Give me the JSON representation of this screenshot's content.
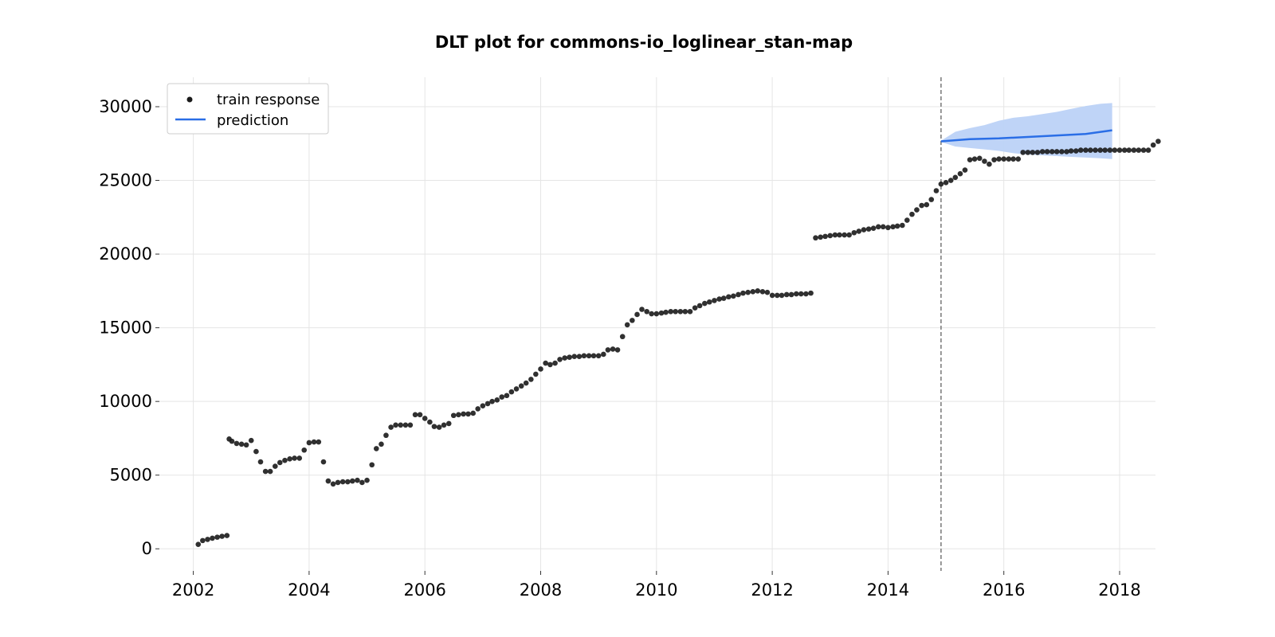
{
  "chart_data": {
    "type": "scatter",
    "title": "DLT plot for commons-io_loglinear_stan-map",
    "xlabel": "",
    "ylabel": "",
    "xlim": [
      "2001-06-01",
      "2018-08-15"
    ],
    "ylim": [
      -1500,
      32000
    ],
    "x_ticks": [
      "2002",
      "2004",
      "2006",
      "2008",
      "2010",
      "2012",
      "2014",
      "2016",
      "2018"
    ],
    "y_ticks": [
      "0",
      "5000",
      "10000",
      "15000",
      "20000",
      "25000",
      "30000"
    ],
    "grid": true,
    "legend": {
      "position": "top-left",
      "entries": [
        "train response",
        "prediction"
      ]
    },
    "train_cutoff": "2014-12-01",
    "colors": {
      "train": "#1a1a1a",
      "prediction": "#2a6ee6",
      "band": "#bcd2f7",
      "cutoff": "#777777",
      "grid": "#e5e5e5"
    },
    "series": [
      {
        "name": "train response",
        "type": "scatter",
        "points": [
          [
            "2002-02-01",
            300
          ],
          [
            "2002-03-01",
            560
          ],
          [
            "2002-04-01",
            640
          ],
          [
            "2002-05-01",
            720
          ],
          [
            "2002-06-01",
            790
          ],
          [
            "2002-07-01",
            850
          ],
          [
            "2002-08-01",
            900
          ],
          [
            "2002-08-15",
            7450
          ],
          [
            "2002-09-01",
            7300
          ],
          [
            "2002-10-01",
            7150
          ],
          [
            "2002-11-01",
            7100
          ],
          [
            "2002-12-01",
            7050
          ],
          [
            "2003-01-01",
            7350
          ],
          [
            "2003-02-01",
            6600
          ],
          [
            "2003-03-01",
            5900
          ],
          [
            "2003-04-01",
            5250
          ],
          [
            "2003-05-01",
            5250
          ],
          [
            "2003-06-01",
            5600
          ],
          [
            "2003-07-01",
            5850
          ],
          [
            "2003-08-01",
            6000
          ],
          [
            "2003-09-01",
            6100
          ],
          [
            "2003-10-01",
            6150
          ],
          [
            "2003-11-01",
            6150
          ],
          [
            "2003-12-01",
            6700
          ],
          [
            "2004-01-01",
            7200
          ],
          [
            "2004-02-01",
            7250
          ],
          [
            "2004-03-01",
            7250
          ],
          [
            "2004-04-01",
            5900
          ],
          [
            "2004-05-01",
            4600
          ],
          [
            "2004-06-01",
            4400
          ],
          [
            "2004-07-01",
            4500
          ],
          [
            "2004-08-01",
            4550
          ],
          [
            "2004-09-01",
            4550
          ],
          [
            "2004-10-01",
            4600
          ],
          [
            "2004-11-01",
            4650
          ],
          [
            "2004-12-01",
            4500
          ],
          [
            "2005-01-01",
            4650
          ],
          [
            "2005-02-01",
            5700
          ],
          [
            "2005-03-01",
            6800
          ],
          [
            "2005-04-01",
            7100
          ],
          [
            "2005-05-01",
            7700
          ],
          [
            "2005-06-01",
            8250
          ],
          [
            "2005-07-01",
            8400
          ],
          [
            "2005-08-01",
            8400
          ],
          [
            "2005-09-01",
            8400
          ],
          [
            "2005-10-01",
            8400
          ],
          [
            "2005-11-01",
            9100
          ],
          [
            "2005-12-01",
            9100
          ],
          [
            "2006-01-01",
            8850
          ],
          [
            "2006-02-01",
            8600
          ],
          [
            "2006-03-01",
            8300
          ],
          [
            "2006-04-01",
            8250
          ],
          [
            "2006-05-01",
            8400
          ],
          [
            "2006-06-01",
            8500
          ],
          [
            "2006-07-01",
            9050
          ],
          [
            "2006-08-01",
            9100
          ],
          [
            "2006-09-01",
            9150
          ],
          [
            "2006-10-01",
            9150
          ],
          [
            "2006-11-01",
            9200
          ],
          [
            "2006-12-01",
            9500
          ],
          [
            "2007-01-01",
            9700
          ],
          [
            "2007-02-01",
            9850
          ],
          [
            "2007-03-01",
            10000
          ],
          [
            "2007-04-01",
            10100
          ],
          [
            "2007-05-01",
            10300
          ],
          [
            "2007-06-01",
            10400
          ],
          [
            "2007-07-01",
            10650
          ],
          [
            "2007-08-01",
            10850
          ],
          [
            "2007-09-01",
            11050
          ],
          [
            "2007-10-01",
            11250
          ],
          [
            "2007-11-01",
            11500
          ],
          [
            "2007-12-01",
            11850
          ],
          [
            "2008-01-01",
            12200
          ],
          [
            "2008-02-01",
            12600
          ],
          [
            "2008-03-01",
            12500
          ],
          [
            "2008-04-01",
            12600
          ],
          [
            "2008-05-01",
            12850
          ],
          [
            "2008-06-01",
            12950
          ],
          [
            "2008-07-01",
            13000
          ],
          [
            "2008-08-01",
            13050
          ],
          [
            "2008-09-01",
            13050
          ],
          [
            "2008-10-01",
            13100
          ],
          [
            "2008-11-01",
            13100
          ],
          [
            "2008-12-01",
            13100
          ],
          [
            "2009-01-01",
            13100
          ],
          [
            "2009-02-01",
            13200
          ],
          [
            "2009-03-01",
            13500
          ],
          [
            "2009-04-01",
            13550
          ],
          [
            "2009-05-01",
            13500
          ],
          [
            "2009-06-01",
            14400
          ],
          [
            "2009-07-01",
            15200
          ],
          [
            "2009-08-01",
            15500
          ],
          [
            "2009-09-01",
            15900
          ],
          [
            "2009-10-01",
            16250
          ],
          [
            "2009-11-01",
            16100
          ],
          [
            "2009-12-01",
            15950
          ],
          [
            "2010-01-01",
            15950
          ],
          [
            "2010-02-01",
            16000
          ],
          [
            "2010-03-01",
            16050
          ],
          [
            "2010-04-01",
            16100
          ],
          [
            "2010-05-01",
            16100
          ],
          [
            "2010-06-01",
            16100
          ],
          [
            "2010-07-01",
            16100
          ],
          [
            "2010-08-01",
            16100
          ],
          [
            "2010-09-01",
            16350
          ],
          [
            "2010-10-01",
            16500
          ],
          [
            "2010-11-01",
            16650
          ],
          [
            "2010-12-01",
            16750
          ],
          [
            "2011-01-01",
            16850
          ],
          [
            "2011-02-01",
            16950
          ],
          [
            "2011-03-01",
            17000
          ],
          [
            "2011-04-01",
            17100
          ],
          [
            "2011-05-01",
            17150
          ],
          [
            "2011-06-01",
            17250
          ],
          [
            "2011-07-01",
            17350
          ],
          [
            "2011-08-01",
            17400
          ],
          [
            "2011-09-01",
            17450
          ],
          [
            "2011-10-01",
            17500
          ],
          [
            "2011-11-01",
            17450
          ],
          [
            "2011-12-01",
            17400
          ],
          [
            "2012-01-01",
            17200
          ],
          [
            "2012-02-01",
            17200
          ],
          [
            "2012-03-01",
            17200
          ],
          [
            "2012-04-01",
            17250
          ],
          [
            "2012-05-01",
            17250
          ],
          [
            "2012-06-01",
            17300
          ],
          [
            "2012-07-01",
            17300
          ],
          [
            "2012-08-01",
            17300
          ],
          [
            "2012-09-01",
            17350
          ],
          [
            "2012-10-01",
            21100
          ],
          [
            "2012-11-01",
            21150
          ],
          [
            "2012-12-01",
            21200
          ],
          [
            "2013-01-01",
            21250
          ],
          [
            "2013-02-01",
            21300
          ],
          [
            "2013-03-01",
            21300
          ],
          [
            "2013-04-01",
            21300
          ],
          [
            "2013-05-01",
            21300
          ],
          [
            "2013-06-01",
            21450
          ],
          [
            "2013-07-01",
            21550
          ],
          [
            "2013-08-01",
            21650
          ],
          [
            "2013-09-01",
            21700
          ],
          [
            "2013-10-01",
            21750
          ],
          [
            "2013-11-01",
            21850
          ],
          [
            "2013-12-01",
            21850
          ],
          [
            "2014-01-01",
            21800
          ],
          [
            "2014-02-01",
            21850
          ],
          [
            "2014-03-01",
            21900
          ],
          [
            "2014-04-01",
            21950
          ],
          [
            "2014-05-01",
            22300
          ],
          [
            "2014-06-01",
            22700
          ],
          [
            "2014-07-01",
            23000
          ],
          [
            "2014-08-01",
            23300
          ],
          [
            "2014-09-01",
            23350
          ],
          [
            "2014-10-01",
            23700
          ],
          [
            "2014-11-01",
            24300
          ],
          [
            "2014-12-01",
            24750
          ],
          [
            "2015-01-01",
            24850
          ],
          [
            "2015-02-01",
            25000
          ],
          [
            "2015-03-01",
            25200
          ],
          [
            "2015-04-01",
            25450
          ],
          [
            "2015-05-01",
            25700
          ],
          [
            "2015-06-01",
            26400
          ],
          [
            "2015-07-01",
            26450
          ],
          [
            "2015-08-01",
            26500
          ],
          [
            "2015-09-01",
            26300
          ],
          [
            "2015-10-01",
            26100
          ],
          [
            "2015-11-01",
            26400
          ],
          [
            "2015-12-01",
            26450
          ],
          [
            "2016-01-01",
            26450
          ],
          [
            "2016-02-01",
            26450
          ],
          [
            "2016-03-01",
            26450
          ],
          [
            "2016-04-01",
            26450
          ],
          [
            "2016-05-01",
            26900
          ],
          [
            "2016-06-01",
            26900
          ],
          [
            "2016-07-01",
            26900
          ],
          [
            "2016-08-01",
            26900
          ],
          [
            "2016-09-01",
            26950
          ],
          [
            "2016-10-01",
            26950
          ],
          [
            "2016-11-01",
            26950
          ],
          [
            "2016-12-01",
            26950
          ],
          [
            "2017-01-01",
            26950
          ],
          [
            "2017-02-01",
            26950
          ],
          [
            "2017-03-01",
            27000
          ],
          [
            "2017-04-01",
            27000
          ],
          [
            "2017-05-01",
            27050
          ],
          [
            "2017-06-01",
            27050
          ],
          [
            "2017-07-01",
            27050
          ],
          [
            "2017-08-01",
            27050
          ],
          [
            "2017-09-01",
            27050
          ],
          [
            "2017-10-01",
            27050
          ],
          [
            "2017-11-01",
            27050
          ],
          [
            "2017-12-01",
            27050
          ],
          [
            "2018-01-01",
            27050
          ],
          [
            "2018-02-01",
            27050
          ],
          [
            "2018-03-01",
            27050
          ],
          [
            "2018-04-01",
            27050
          ],
          [
            "2018-05-01",
            27050
          ],
          [
            "2018-06-01",
            27050
          ],
          [
            "2018-07-01",
            27050
          ],
          [
            "2018-08-01",
            27400
          ],
          [
            "2018-09-01",
            27650
          ]
        ]
      },
      {
        "name": "prediction",
        "type": "line",
        "points": [
          [
            "2014-12-01",
            27650
          ],
          [
            "2015-06-01",
            27800
          ],
          [
            "2015-12-01",
            27850
          ],
          [
            "2016-06-01",
            27950
          ],
          [
            "2016-12-01",
            28050
          ],
          [
            "2017-06-01",
            28150
          ],
          [
            "2017-11-15",
            28400
          ]
        ],
        "band": [
          [
            "2014-12-01",
            27600,
            27700
          ],
          [
            "2015-01-01",
            27500,
            27900
          ],
          [
            "2015-03-01",
            27300,
            28300
          ],
          [
            "2015-06-01",
            27200,
            28550
          ],
          [
            "2015-09-01",
            27100,
            28750
          ],
          [
            "2015-12-01",
            27000,
            29050
          ],
          [
            "2016-03-01",
            26850,
            29250
          ],
          [
            "2016-06-01",
            26750,
            29350
          ],
          [
            "2016-09-01",
            26700,
            29500
          ],
          [
            "2016-12-01",
            26650,
            29650
          ],
          [
            "2017-03-01",
            26600,
            29850
          ],
          [
            "2017-06-01",
            26550,
            30050
          ],
          [
            "2017-09-01",
            26500,
            30200
          ],
          [
            "2017-11-15",
            26450,
            30250
          ]
        ]
      }
    ]
  }
}
